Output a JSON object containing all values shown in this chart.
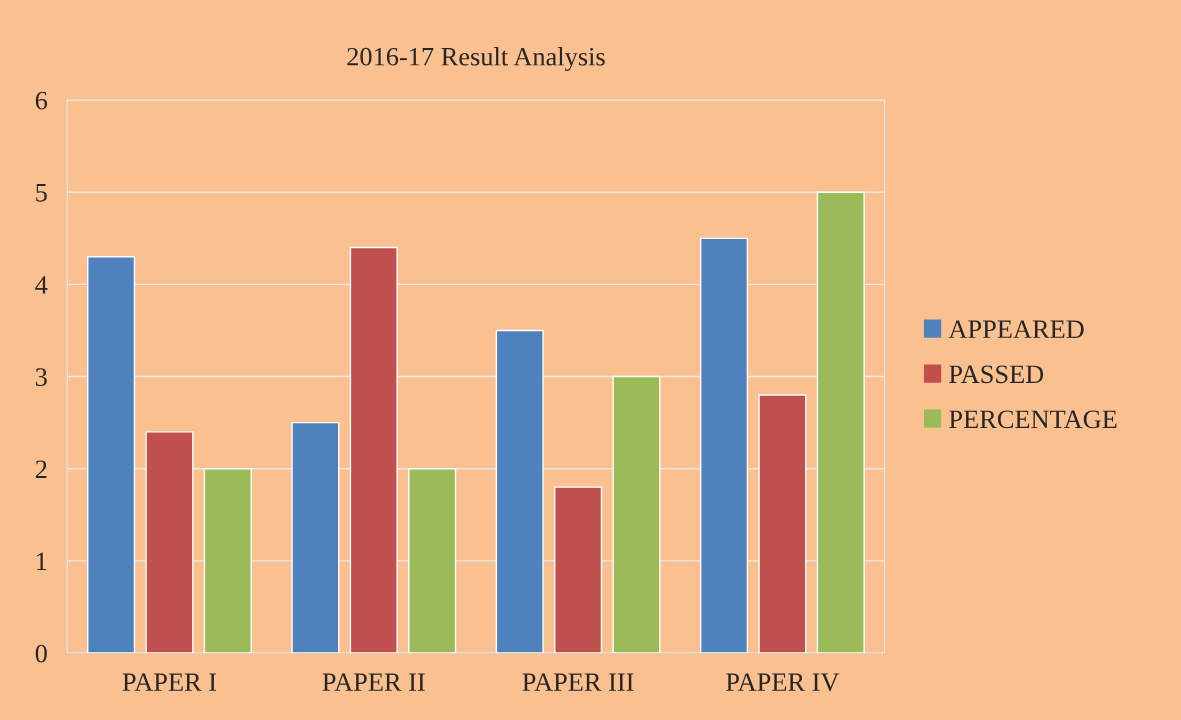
{
  "chart_data": {
    "type": "bar",
    "title": "2016-17 Result Analysis",
    "categories": [
      "PAPER I",
      "PAPER II",
      "PAPER III",
      "PAPER IV"
    ],
    "series": [
      {
        "name": "APPEARED",
        "color": "#4f81bd",
        "values": [
          4.3,
          2.5,
          3.5,
          4.5
        ]
      },
      {
        "name": "PASSED",
        "color": "#c0504d",
        "values": [
          2.4,
          4.4,
          1.8,
          2.8
        ]
      },
      {
        "name": "PERCENTAGE",
        "color": "#9bbb59",
        "values": [
          2,
          2,
          3,
          5
        ]
      }
    ],
    "ylim": [
      0,
      6
    ],
    "yticks": [
      0,
      1,
      2,
      3,
      4,
      5,
      6
    ],
    "grid": "y",
    "legend": "right"
  }
}
